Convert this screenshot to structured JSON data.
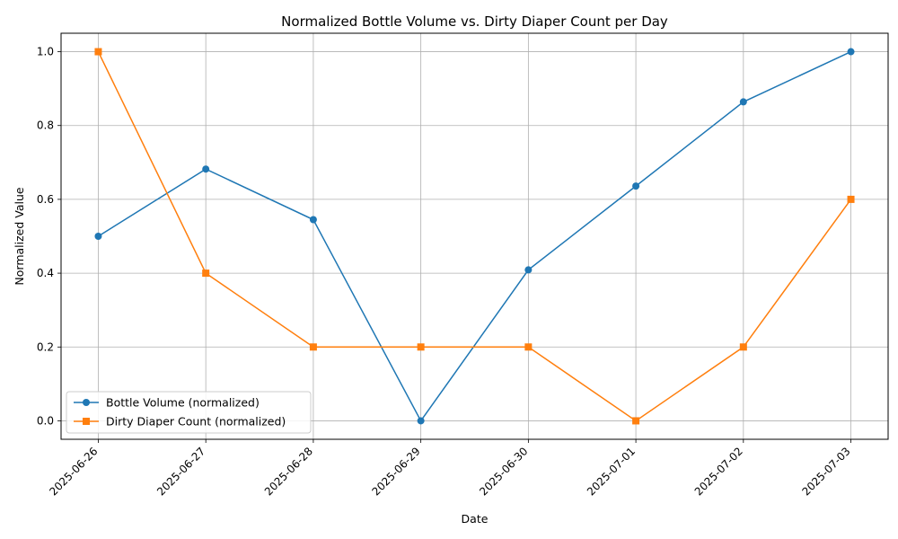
{
  "chart_data": {
    "type": "line",
    "title": "Normalized Bottle Volume vs. Dirty Diaper Count per Day",
    "xlabel": "Date",
    "ylabel": "Normalized Value",
    "x": [
      "2025-06-26",
      "2025-06-27",
      "2025-06-28",
      "2025-06-29",
      "2025-06-30",
      "2025-07-01",
      "2025-07-02",
      "2025-07-03"
    ],
    "ylim": [
      -0.05,
      1.05
    ],
    "yticks": [
      "0.0",
      "0.2",
      "0.4",
      "0.6",
      "0.8",
      "1.0"
    ],
    "grid": true,
    "legend_position": "lower-left",
    "series": [
      {
        "name": "Bottle Volume (normalized)",
        "color": "#1f77b4",
        "marker": "circle",
        "values": [
          0.5,
          0.682,
          0.545,
          0.0,
          0.409,
          0.636,
          0.864,
          1.0
        ]
      },
      {
        "name": "Dirty Diaper Count (normalized)",
        "color": "#ff7f0e",
        "marker": "square",
        "values": [
          1.0,
          0.4,
          0.2,
          0.2,
          0.2,
          0.0,
          0.2,
          0.6
        ]
      }
    ]
  }
}
